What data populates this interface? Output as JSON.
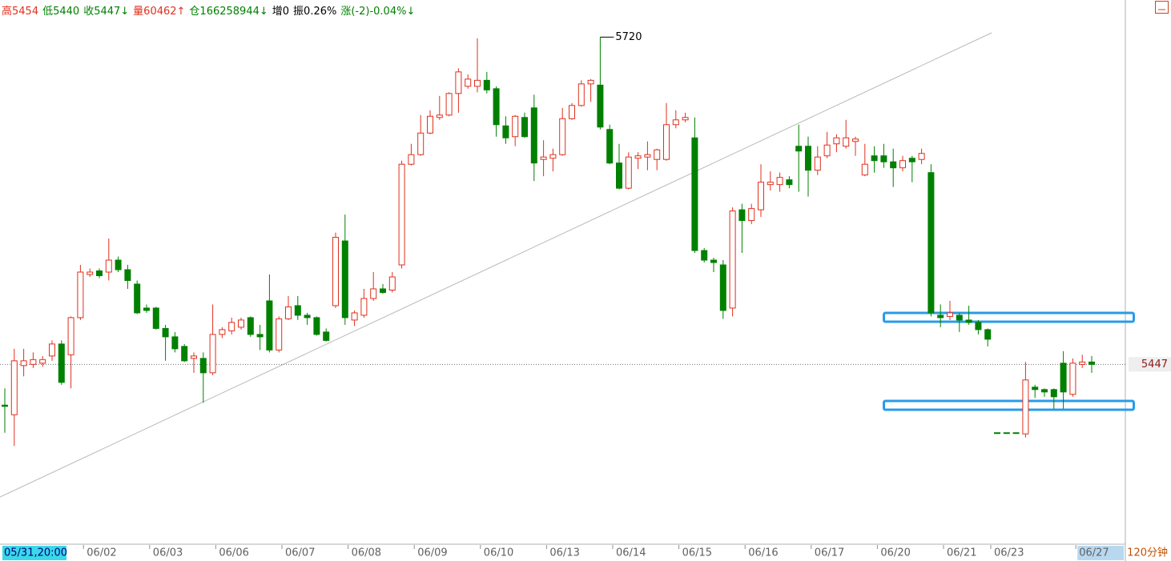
{
  "chart_data": {
    "type": "candlestick",
    "info": [
      {
        "text": "高5454",
        "color": "#e0301e"
      },
      {
        "text": "低5440",
        "color": "#008000"
      },
      {
        "text": "收5447↓",
        "color": "#008000"
      },
      {
        "text": "量60462↑",
        "color": "#e0301e"
      },
      {
        "text": "仓166258944↓",
        "color": "#008000"
      },
      {
        "text": "增0",
        "color": "#000000"
      },
      {
        "text": "振0.26%",
        "color": "#000000"
      },
      {
        "text": "涨(-2)-0.04%↓",
        "color": "#008000"
      }
    ],
    "period": "120分钟",
    "last_price": 5447,
    "max_label": 5720,
    "up_color": "#e0301e",
    "down_color": "#008000",
    "ylim": [
      5297,
      5751
    ],
    "categories": [
      "05/31,20:00",
      null,
      null,
      null,
      null,
      null,
      null,
      null,
      null,
      "06/02",
      null,
      null,
      null,
      null,
      null,
      null,
      "06/03",
      null,
      null,
      null,
      null,
      null,
      null,
      "06/06",
      null,
      null,
      null,
      null,
      null,
      null,
      "06/07",
      null,
      null,
      null,
      null,
      null,
      null,
      "06/08",
      null,
      null,
      null,
      null,
      null,
      null,
      "06/09",
      null,
      null,
      null,
      null,
      null,
      null,
      "06/10",
      null,
      null,
      null,
      null,
      null,
      null,
      "06/13",
      null,
      null,
      null,
      null,
      null,
      null,
      "06/14",
      null,
      null,
      null,
      null,
      null,
      null,
      "06/15",
      null,
      null,
      null,
      null,
      null,
      null,
      "06/16",
      null,
      null,
      null,
      null,
      null,
      null,
      "06/17",
      null,
      null,
      null,
      null,
      null,
      null,
      "06/20",
      null,
      null,
      null,
      null,
      null,
      null,
      "06/21",
      null,
      null,
      null,
      null,
      "06/23",
      null,
      null,
      null,
      null,
      null,
      null,
      null,
      null,
      "06/27",
      null
    ],
    "open": [
      5413,
      5405,
      5446,
      5447,
      5448,
      5454,
      5464,
      5455,
      5486,
      5522,
      5525,
      5524,
      5534,
      5526,
      5514,
      5494,
      5494,
      5477,
      5470,
      5462,
      5452,
      5452,
      5440,
      5472,
      5475,
      5478,
      5486,
      5472,
      5500,
      5459,
      5485,
      5496,
      5488,
      5486,
      5474,
      5496,
      5550,
      5484,
      5488,
      5502,
      5510,
      5509,
      5530,
      5614,
      5622,
      5640,
      5653,
      5655,
      5673,
      5679,
      5679,
      5684,
      5677,
      5646,
      5637,
      5653,
      5661,
      5618,
      5619,
      5622,
      5652,
      5663,
      5681,
      5680,
      5643,
      5615,
      5594,
      5619,
      5620,
      5618,
      5618,
      5647,
      5651,
      5636,
      5542,
      5534,
      5530,
      5494,
      5576,
      5567,
      5576,
      5597,
      5597,
      5601,
      5629,
      5629,
      5609,
      5621,
      5631,
      5629,
      5633,
      5605,
      5621,
      5621,
      5616,
      5611,
      5619,
      5618,
      5607,
      5488,
      5487,
      5488,
      5484,
      5482,
      5476,
      5390,
      5390,
      5390,
      5389,
      5428,
      5426,
      5426,
      5448,
      5422,
      5447,
      5449
    ],
    "high": [
      5427,
      5460,
      5460,
      5457,
      5454,
      5467,
      5467,
      5487,
      5530,
      5527,
      5527,
      5552,
      5537,
      5530,
      5517,
      5497,
      5495,
      5480,
      5474,
      5464,
      5457,
      5457,
      5497,
      5478,
      5486,
      5486,
      5487,
      5480,
      5522,
      5487,
      5504,
      5504,
      5490,
      5487,
      5477,
      5557,
      5572,
      5492,
      5510,
      5524,
      5514,
      5524,
      5617,
      5631,
      5655,
      5659,
      5671,
      5674,
      5694,
      5689,
      5719,
      5691,
      5679,
      5654,
      5655,
      5657,
      5672,
      5634,
      5627,
      5661,
      5665,
      5684,
      5685,
      5720,
      5647,
      5631,
      5624,
      5624,
      5633,
      5627,
      5665,
      5659,
      5657,
      5653,
      5544,
      5536,
      5534,
      5578,
      5581,
      5581,
      5614,
      5608,
      5607,
      5604,
      5647,
      5637,
      5629,
      5641,
      5639,
      5651,
      5637,
      5631,
      5629,
      5631,
      5627,
      5621,
      5621,
      5627,
      5614,
      5497,
      5500,
      5490,
      5496,
      5484,
      5477,
      5390,
      5390,
      5390,
      5449,
      5430,
      5427,
      5427,
      5458,
      5452,
      5455,
      5454
    ],
    "low": [
      5390,
      5379,
      5437,
      5444,
      5445,
      5450,
      5430,
      5427,
      5484,
      5520,
      5519,
      5517,
      5524,
      5510,
      5489,
      5490,
      5476,
      5450,
      5457,
      5449,
      5440,
      5415,
      5438,
      5469,
      5472,
      5476,
      5470,
      5459,
      5457,
      5457,
      5484,
      5484,
      5480,
      5471,
      5466,
      5494,
      5480,
      5479,
      5486,
      5500,
      5506,
      5507,
      5527,
      5613,
      5621,
      5639,
      5651,
      5654,
      5657,
      5677,
      5674,
      5673,
      5637,
      5631,
      5629,
      5636,
      5600,
      5604,
      5608,
      5621,
      5651,
      5662,
      5666,
      5643,
      5614,
      5593,
      5593,
      5610,
      5609,
      5609,
      5617,
      5644,
      5649,
      5540,
      5532,
      5524,
      5485,
      5487,
      5540,
      5564,
      5570,
      5592,
      5591,
      5594,
      5591,
      5587,
      5605,
      5619,
      5624,
      5627,
      5621,
      5604,
      5607,
      5611,
      5595,
      5608,
      5599,
      5614,
      5487,
      5478,
      5484,
      5474,
      5480,
      5472,
      5462,
      5390,
      5390,
      5390,
      5386,
      5419,
      5420,
      5410,
      5410,
      5420,
      5444,
      5440
    ],
    "close": [
      5412,
      5450,
      5450,
      5451,
      5451,
      5464,
      5432,
      5486,
      5524,
      5524,
      5521,
      5534,
      5526,
      5517,
      5490,
      5492,
      5477,
      5470,
      5460,
      5450,
      5454,
      5440,
      5472,
      5476,
      5482,
      5484,
      5472,
      5470,
      5459,
      5485,
      5495,
      5488,
      5486,
      5472,
      5467,
      5553,
      5486,
      5490,
      5502,
      5510,
      5507,
      5520,
      5614,
      5622,
      5640,
      5654,
      5655,
      5673,
      5691,
      5685,
      5684,
      5676,
      5647,
      5636,
      5654,
      5637,
      5615,
      5620,
      5622,
      5652,
      5663,
      5681,
      5684,
      5645,
      5615,
      5594,
      5620,
      5621,
      5622,
      5626,
      5647,
      5651,
      5653,
      5542,
      5534,
      5532,
      5492,
      5575,
      5567,
      5577,
      5599,
      5599,
      5603,
      5597,
      5625,
      5609,
      5620,
      5630,
      5636,
      5636,
      5635,
      5614,
      5617,
      5616,
      5611,
      5617,
      5616,
      5623,
      5490,
      5486,
      5490,
      5484,
      5482,
      5476,
      5468,
      5390,
      5390,
      5390,
      5434,
      5426,
      5424,
      5420,
      5424,
      5448,
      5449,
      5447
    ]
  }
}
